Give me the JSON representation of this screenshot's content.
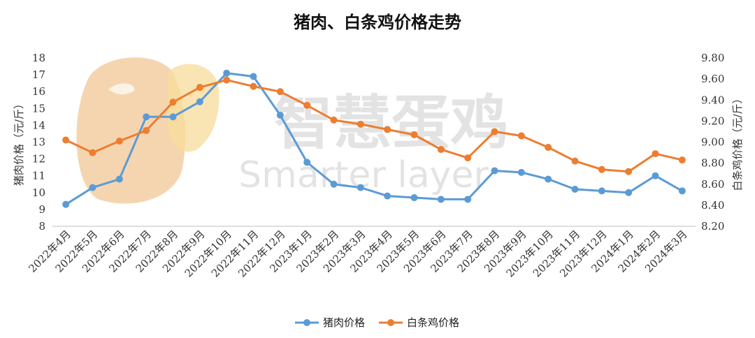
{
  "chart_data": {
    "type": "line",
    "title": "猪肉、白条鸡价格走势",
    "categories": [
      "2022年4月",
      "2022年5月",
      "2022年6月",
      "2022年7月",
      "2022年8月",
      "2022年9月",
      "2022年10月",
      "2022年11月",
      "2022年12月",
      "2023年1月",
      "2023年2月",
      "2023年3月",
      "2023年4月",
      "2023年5月",
      "2023年6月",
      "2023年7月",
      "2023年8月",
      "2023年9月",
      "2023年10月",
      "2023年11月",
      "2023年12月",
      "2024年1月",
      "2024年2月",
      "2024年3月"
    ],
    "series": [
      {
        "name": "猪肉价格",
        "axis": "left",
        "color": "#5B9BD5",
        "values": [
          9.3,
          10.3,
          10.8,
          14.5,
          14.5,
          15.4,
          17.1,
          16.9,
          14.6,
          11.8,
          10.5,
          10.3,
          9.8,
          9.7,
          9.6,
          9.6,
          11.3,
          11.2,
          10.8,
          10.2,
          10.1,
          10.0,
          11.0,
          10.1
        ]
      },
      {
        "name": "白条鸡价格",
        "axis": "right",
        "color": "#ED7D31",
        "values": [
          9.02,
          8.9,
          9.01,
          9.11,
          9.38,
          9.52,
          9.59,
          9.53,
          9.48,
          9.35,
          9.21,
          9.17,
          9.12,
          9.07,
          8.93,
          8.85,
          9.1,
          9.06,
          8.95,
          8.82,
          8.74,
          8.72,
          8.89,
          8.83
        ]
      }
    ],
    "ylabel": "猪肉价格（元/斤）",
    "y2label": "白条鸡价格（元/斤）",
    "ylim": [
      8,
      18
    ],
    "y2lim": [
      8.2,
      9.8
    ],
    "yticks": [
      "8",
      "9",
      "10",
      "11",
      "12",
      "13",
      "14",
      "15",
      "16",
      "17",
      "18"
    ],
    "y2ticks": [
      "8.20",
      "8.40",
      "8.60",
      "8.80",
      "9.00",
      "9.20",
      "9.40",
      "9.60",
      "9.80"
    ],
    "grid": false,
    "legend": "bottom",
    "watermark": {
      "brand": "智慧蛋鸡",
      "tagline": "Smarter layer",
      "color": "#f2c795"
    }
  }
}
